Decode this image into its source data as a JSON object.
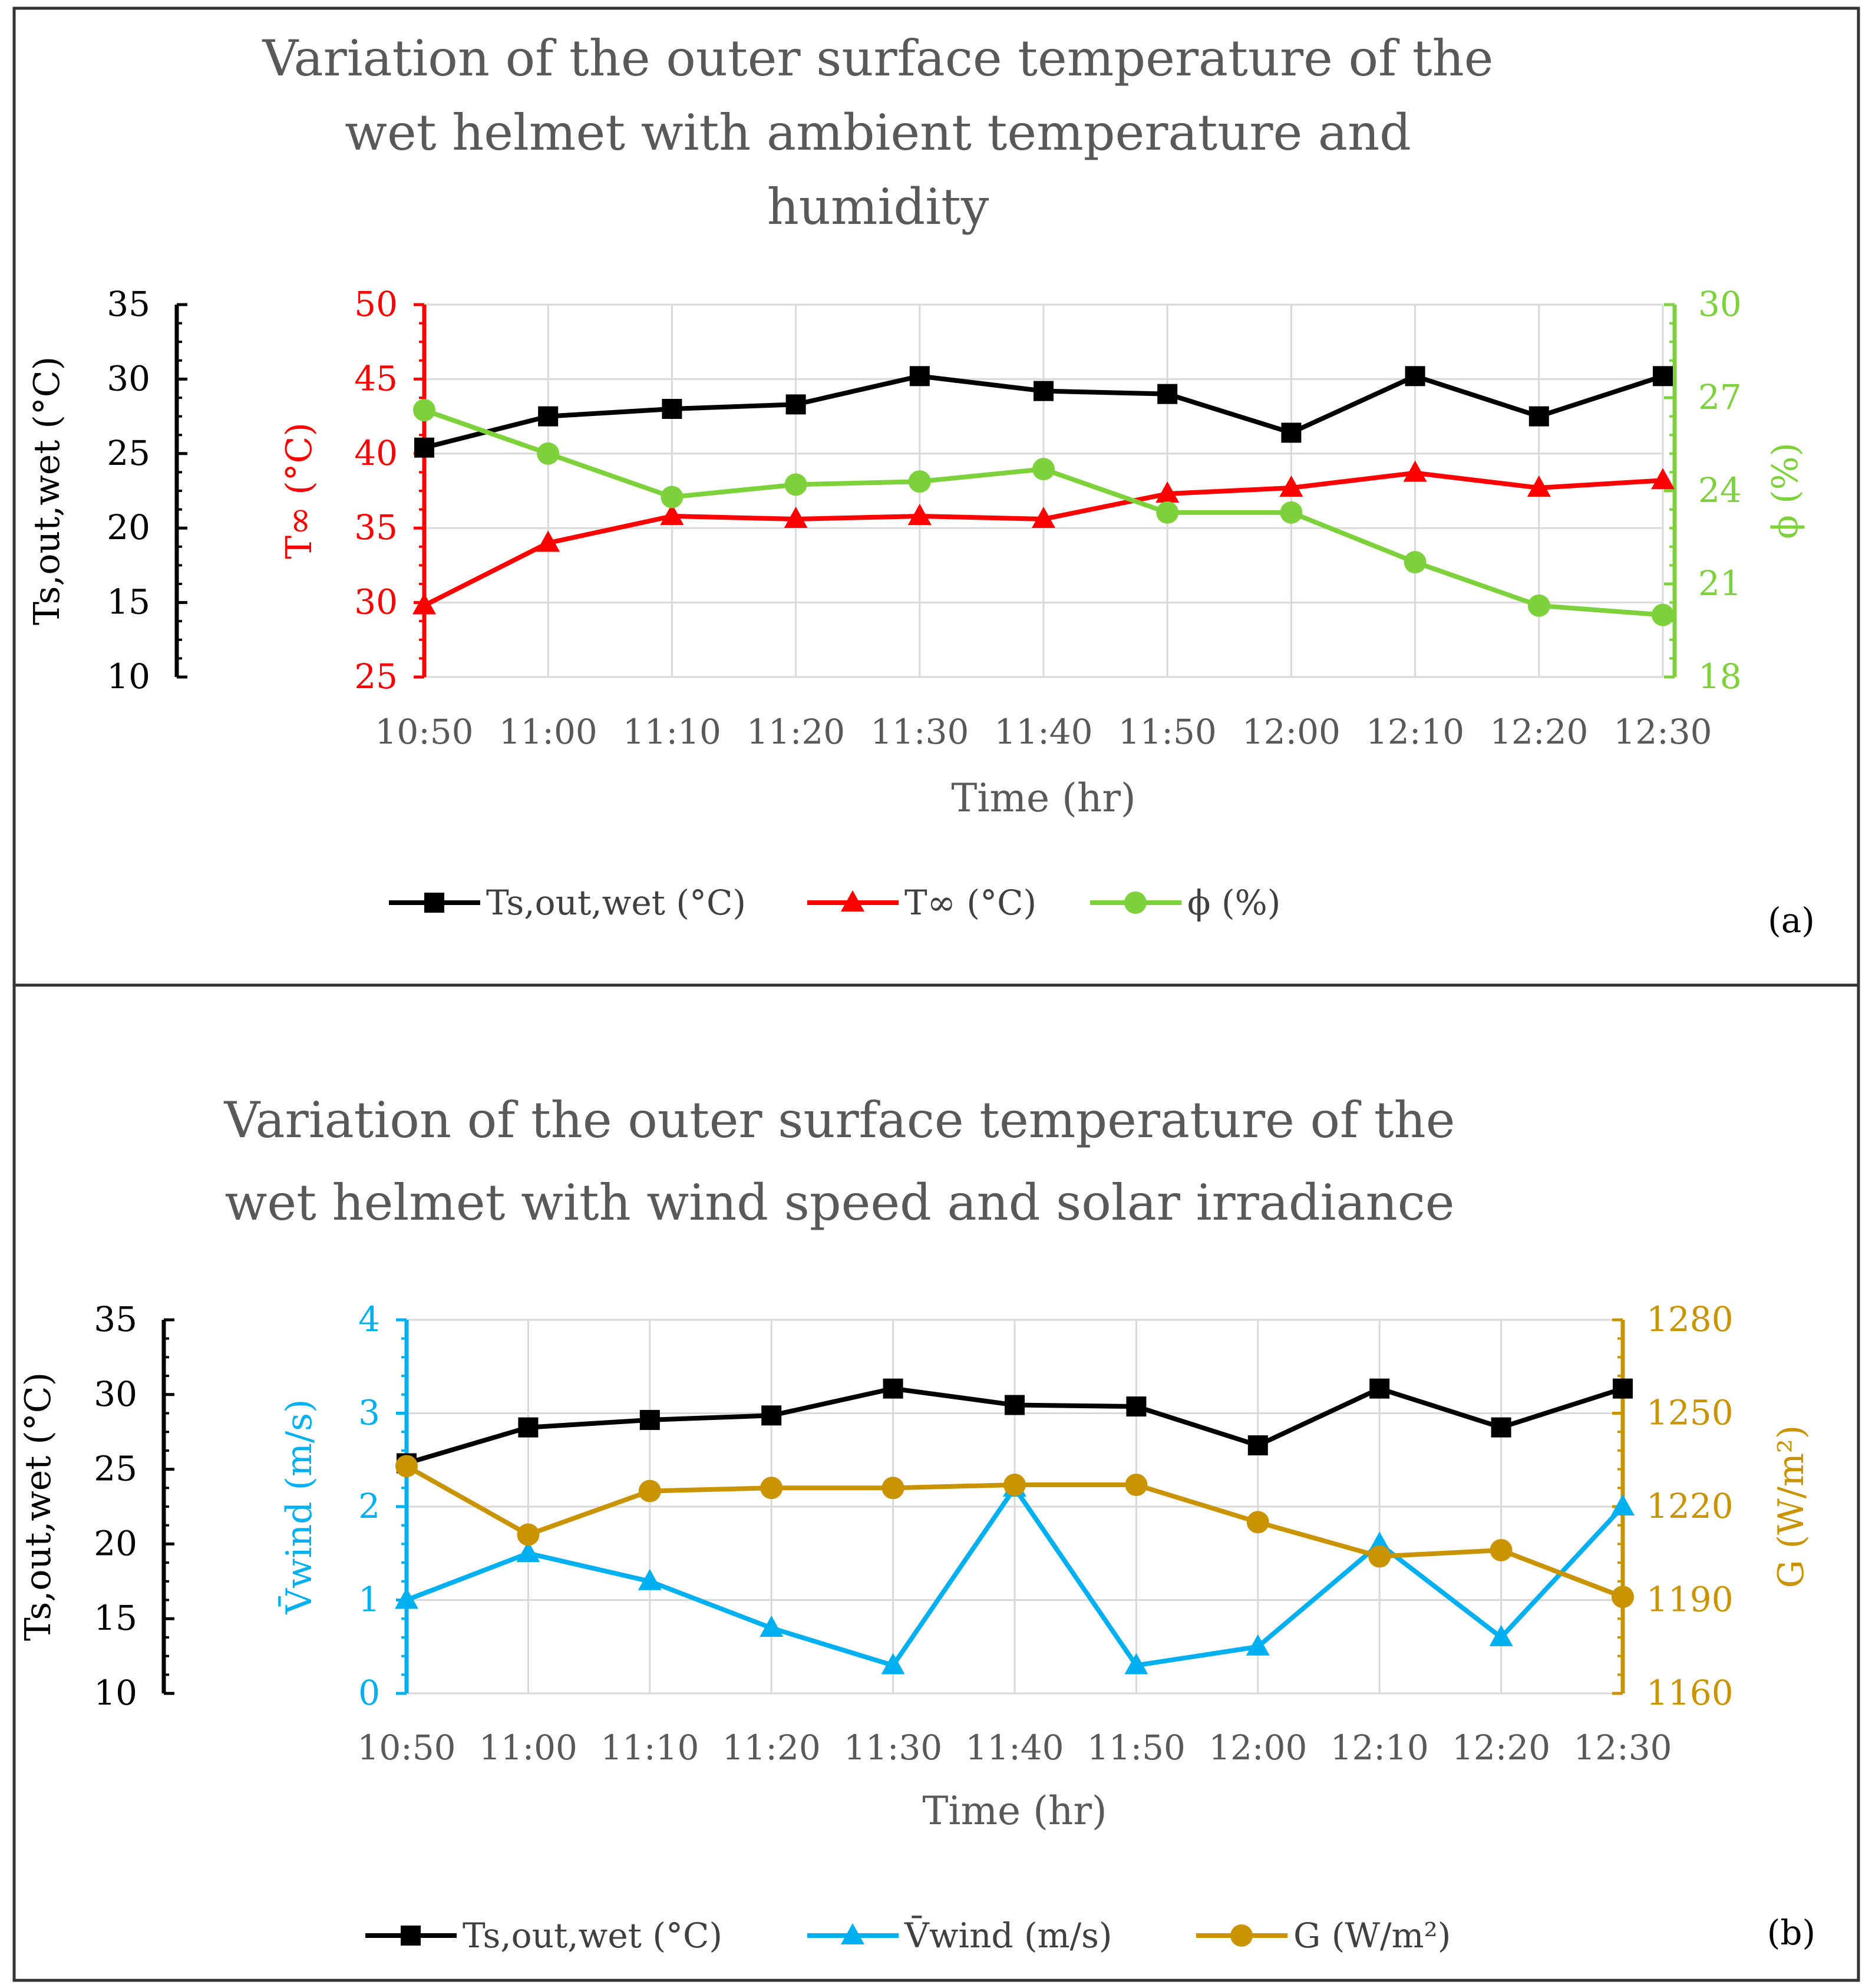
{
  "panels": {
    "a": {
      "tag": "(a)"
    },
    "b": {
      "tag": "(b)"
    }
  },
  "colors": {
    "black": "#000000",
    "red": "#ff0000",
    "green": "#7dd13a",
    "cyan": "#00b0f0",
    "gold": "#c99400",
    "grid": "#d9d9d9",
    "title": "#595959",
    "tick": "#595959"
  },
  "chart_data": [
    {
      "type": "line",
      "title_lines": [
        "Variation of the outer surface temperature of the",
        "wet helmet with ambient temperature and",
        "humidity"
      ],
      "xlabel": "Time (hr)",
      "categories": [
        "10:50",
        "11:00",
        "11:10",
        "11:20",
        "11:30",
        "11:40",
        "11:50",
        "12:00",
        "12:10",
        "12:20",
        "12:30"
      ],
      "axes": {
        "ts": {
          "label": "Ts,out,wet (°C)",
          "ylim": [
            10,
            35
          ],
          "ticks": [
            10,
            15,
            20,
            25,
            30,
            35
          ]
        },
        "left": {
          "label": "T∞ (°C)",
          "ylim": [
            25,
            50
          ],
          "ticks": [
            25,
            30,
            35,
            40,
            45,
            50
          ]
        },
        "right": {
          "label": "ϕ (%)",
          "ylim": [
            18,
            30
          ],
          "ticks": [
            18,
            21,
            24,
            27,
            30
          ]
        }
      },
      "series": [
        {
          "name": "Ts,out,wet (°C)",
          "axis": "ts",
          "color": "black",
          "marker": "square",
          "values": [
            25.4,
            27.5,
            28.0,
            28.3,
            30.2,
            29.2,
            29.0,
            26.4,
            30.2,
            27.5,
            30.2
          ]
        },
        {
          "name": "T∞ (°C)",
          "axis": "left",
          "color": "red",
          "marker": "triangle",
          "values": [
            29.8,
            34.0,
            35.8,
            35.6,
            35.8,
            35.6,
            37.3,
            37.7,
            38.7,
            37.7,
            38.2
          ]
        },
        {
          "name": "ϕ (%)",
          "axis": "right",
          "color": "green",
          "marker": "circle",
          "values": [
            26.6,
            25.2,
            23.8,
            24.2,
            24.3,
            24.7,
            23.3,
            23.3,
            21.7,
            20.3,
            20.0
          ]
        }
      ],
      "legend": [
        {
          "label": "Ts,out,wet (°C)",
          "color": "black",
          "marker": "square"
        },
        {
          "label": "T∞ (°C)",
          "color": "red",
          "marker": "triangle"
        },
        {
          "label": "ϕ (%)",
          "color": "green",
          "marker": "circle"
        }
      ]
    },
    {
      "type": "line",
      "title_lines": [
        "Variation of the outer surface temperature of the",
        "wet helmet with wind speed and solar irradiance"
      ],
      "xlabel": "Time (hr)",
      "categories": [
        "10:50",
        "11:00",
        "11:10",
        "11:20",
        "11:30",
        "11:40",
        "11:50",
        "12:00",
        "12:10",
        "12:20",
        "12:30"
      ],
      "axes": {
        "ts": {
          "label": "Ts,out,wet (°C)",
          "ylim": [
            10,
            35
          ],
          "ticks": [
            10,
            15,
            20,
            25,
            30,
            35
          ]
        },
        "left": {
          "label": "V̄wind (m/s)",
          "ylim": [
            0,
            4
          ],
          "ticks": [
            0,
            1,
            2,
            3,
            4
          ]
        },
        "right": {
          "label": "G (W/m²)",
          "ylim": [
            1160,
            1280
          ],
          "ticks": [
            1160,
            1190,
            1220,
            1250,
            1280
          ]
        }
      },
      "series": [
        {
          "name": "Ts,out,wet (°C)",
          "axis": "ts",
          "color": "black",
          "marker": "square",
          "values": [
            25.4,
            27.8,
            28.3,
            28.6,
            30.4,
            29.3,
            29.2,
            26.6,
            30.4,
            27.8,
            30.4
          ]
        },
        {
          "name": "V̄wind (m/s)",
          "axis": "left",
          "color": "cyan",
          "marker": "triangle",
          "values": [
            1.0,
            1.5,
            1.2,
            0.7,
            0.3,
            2.2,
            0.3,
            0.5,
            1.6,
            0.6,
            2.0
          ]
        },
        {
          "name": "G (W/m²)",
          "axis": "right",
          "color": "gold",
          "marker": "circle",
          "values": [
            1233,
            1211,
            1225,
            1226,
            1226,
            1227,
            1227,
            1215,
            1204,
            1206,
            1191
          ]
        }
      ],
      "legend": [
        {
          "label": "Ts,out,wet (°C)",
          "color": "black",
          "marker": "square"
        },
        {
          "label": "V̄wind (m/s)",
          "color": "cyan",
          "marker": "triangle"
        },
        {
          "label": "G (W/m²)",
          "color": "gold",
          "marker": "circle"
        }
      ]
    }
  ]
}
